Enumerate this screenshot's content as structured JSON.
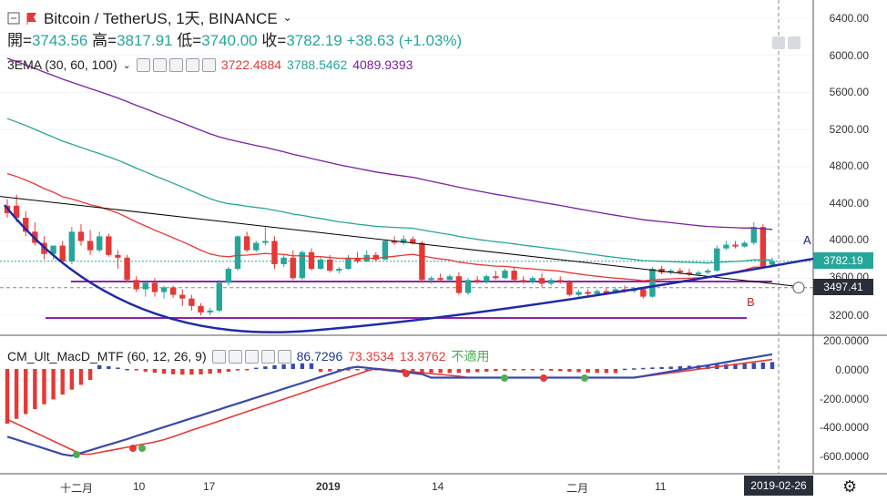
{
  "header": {
    "title": "Bitcoin / TetherUS, 1天, BINANCE",
    "ohlc": [
      {
        "label": "開=",
        "value": "3743.56"
      },
      {
        "label": "高=",
        "value": "3817.91"
      },
      {
        "label": "低=",
        "value": "3740.00"
      },
      {
        "label": "收=",
        "value": "3782.19"
      }
    ],
    "change": "+38.63 (+1.03%)"
  },
  "ema": {
    "label": "3EMA (30, 60, 100)",
    "values": [
      {
        "text": "3722.4884",
        "color": "#e53935"
      },
      {
        "text": "3788.5462",
        "color": "#26a69a"
      },
      {
        "text": "4089.9393",
        "color": "#7b1fa2"
      }
    ]
  },
  "macd": {
    "label": "CM_Ult_MacD_MTF (60, 12, 26, 9)",
    "values": [
      {
        "text": "86.7296",
        "color": "#1e3a8a"
      },
      {
        "text": "73.3534",
        "color": "#e53935"
      },
      {
        "text": "13.3762",
        "color": "#e53935"
      },
      {
        "text": "不適用",
        "color": "#4caf50"
      }
    ]
  },
  "price_axis": [
    "6400.00",
    "6000.00",
    "5600.00",
    "5200.00",
    "4800.00",
    "4400.00",
    "4000.00",
    "3600.00",
    "3200.00"
  ],
  "macd_axis": [
    "200.0000",
    "0.0000",
    "-200.0000",
    "-400.0000",
    "-600.0000"
  ],
  "time_axis": [
    "十二月",
    "10",
    "17",
    "2019",
    "14",
    "二月",
    "11"
  ],
  "price_tags": {
    "last": "3782.19",
    "cursor": "3497.41"
  },
  "date_box": "2019-02-26",
  "annotations": {
    "a": "A",
    "b": "B"
  },
  "colors": {
    "up": "#26a69a",
    "down": "#e53935",
    "ema30": "#e53935",
    "ema60": "#26a69a",
    "ema100": "#7b1fa2",
    "arc": "#1e2aa8",
    "line": "#000000",
    "hline": "#8e24aa"
  },
  "chart_data": {
    "type": "candlestick",
    "candles": [
      [
        4300,
        4450,
        4380,
        4250,
        "d"
      ],
      [
        4380,
        4500,
        4250,
        4200,
        "d"
      ],
      [
        4250,
        4320,
        4100,
        4050,
        "d"
      ],
      [
        4100,
        4200,
        3980,
        3950,
        "d"
      ],
      [
        3980,
        4050,
        3860,
        3800,
        "d"
      ],
      [
        3860,
        3950,
        3950,
        3800,
        "u"
      ],
      [
        3950,
        4000,
        3780,
        3750,
        "d"
      ],
      [
        3780,
        4150,
        4100,
        3750,
        "u"
      ],
      [
        4100,
        4180,
        4000,
        3950,
        "d"
      ],
      [
        4000,
        4120,
        3900,
        3850,
        "d"
      ],
      [
        3900,
        4100,
        4050,
        3880,
        "u"
      ],
      [
        4050,
        4080,
        3850,
        3830,
        "d"
      ],
      [
        3850,
        3900,
        3820,
        3700,
        "d"
      ],
      [
        3820,
        3850,
        3580,
        3550,
        "d"
      ],
      [
        3580,
        3620,
        3480,
        3450,
        "d"
      ],
      [
        3480,
        3560,
        3550,
        3400,
        "u"
      ],
      [
        3550,
        3600,
        3450,
        3400,
        "d"
      ],
      [
        3450,
        3520,
        3500,
        3380,
        "u"
      ],
      [
        3500,
        3520,
        3420,
        3390,
        "d"
      ],
      [
        3420,
        3480,
        3380,
        3300,
        "d"
      ],
      [
        3380,
        3420,
        3300,
        3250,
        "d"
      ],
      [
        3300,
        3330,
        3230,
        3200,
        "d"
      ],
      [
        3230,
        3280,
        3250,
        3200,
        "u"
      ],
      [
        3250,
        3580,
        3550,
        3230,
        "u"
      ],
      [
        3550,
        3720,
        3700,
        3520,
        "u"
      ],
      [
        3700,
        4060,
        4050,
        3680,
        "u"
      ],
      [
        4050,
        4100,
        3900,
        3880,
        "d"
      ],
      [
        3900,
        4000,
        3980,
        3880,
        "u"
      ],
      [
        3980,
        4150,
        4000,
        3950,
        "u"
      ],
      [
        4000,
        4050,
        3750,
        3700,
        "d"
      ],
      [
        3750,
        3850,
        3820,
        3720,
        "u"
      ],
      [
        3820,
        3900,
        3600,
        3580,
        "d"
      ],
      [
        3600,
        3900,
        3880,
        3580,
        "u"
      ],
      [
        3880,
        3920,
        3700,
        3680,
        "d"
      ],
      [
        3700,
        3830,
        3800,
        3690,
        "u"
      ],
      [
        3800,
        3850,
        3680,
        3660,
        "d"
      ],
      [
        3680,
        3720,
        3700,
        3650,
        "u"
      ],
      [
        3700,
        3850,
        3820,
        3690,
        "u"
      ],
      [
        3820,
        3880,
        3780,
        3760,
        "d"
      ],
      [
        3780,
        3900,
        3850,
        3770,
        "u"
      ],
      [
        3850,
        3880,
        3800,
        3780,
        "d"
      ],
      [
        3800,
        4010,
        4000,
        3790,
        "u"
      ],
      [
        4000,
        4050,
        3980,
        3960,
        "d"
      ],
      [
        3980,
        4060,
        4020,
        3960,
        "u"
      ],
      [
        4020,
        4050,
        3980,
        3960,
        "d"
      ],
      [
        3980,
        4000,
        3580,
        3550,
        "d"
      ],
      [
        3580,
        3620,
        3600,
        3540,
        "u"
      ],
      [
        3600,
        3650,
        3580,
        3560,
        "d"
      ],
      [
        3580,
        3640,
        3620,
        3560,
        "u"
      ],
      [
        3620,
        3660,
        3440,
        3420,
        "d"
      ],
      [
        3440,
        3600,
        3580,
        3420,
        "u"
      ],
      [
        3580,
        3620,
        3560,
        3540,
        "d"
      ],
      [
        3560,
        3640,
        3620,
        3540,
        "u"
      ],
      [
        3620,
        3680,
        3600,
        3580,
        "d"
      ],
      [
        3600,
        3700,
        3680,
        3590,
        "u"
      ],
      [
        3680,
        3720,
        3580,
        3560,
        "d"
      ],
      [
        3580,
        3620,
        3560,
        3540,
        "d"
      ],
      [
        3560,
        3620,
        3600,
        3540,
        "u"
      ],
      [
        3600,
        3650,
        3540,
        3500,
        "d"
      ],
      [
        3540,
        3600,
        3580,
        3520,
        "u"
      ],
      [
        3580,
        3620,
        3560,
        3540,
        "d"
      ],
      [
        3560,
        3580,
        3420,
        3400,
        "d"
      ],
      [
        3420,
        3470,
        3450,
        3400,
        "u"
      ],
      [
        3450,
        3480,
        3430,
        3410,
        "d"
      ],
      [
        3430,
        3480,
        3460,
        3410,
        "u"
      ],
      [
        3460,
        3500,
        3440,
        3420,
        "d"
      ],
      [
        3440,
        3500,
        3480,
        3430,
        "u"
      ],
      [
        3480,
        3520,
        3460,
        3440,
        "d"
      ],
      [
        3460,
        3500,
        3480,
        3440,
        "u"
      ],
      [
        3480,
        3500,
        3400,
        3380,
        "d"
      ],
      [
        3400,
        3720,
        3700,
        3390,
        "u"
      ],
      [
        3700,
        3730,
        3660,
        3640,
        "d"
      ],
      [
        3660,
        3700,
        3680,
        3640,
        "u"
      ],
      [
        3680,
        3710,
        3660,
        3640,
        "d"
      ],
      [
        3660,
        3700,
        3640,
        3620,
        "d"
      ],
      [
        3640,
        3680,
        3660,
        3620,
        "u"
      ],
      [
        3660,
        3700,
        3680,
        3640,
        "u"
      ],
      [
        3680,
        3950,
        3920,
        3670,
        "u"
      ],
      [
        3920,
        4000,
        3960,
        3900,
        "u"
      ],
      [
        3960,
        4000,
        3940,
        3920,
        "d"
      ],
      [
        3940,
        4000,
        3980,
        3930,
        "u"
      ],
      [
        3980,
        4200,
        4150,
        3960,
        "u"
      ],
      [
        4150,
        4180,
        3720,
        3700,
        "d"
      ],
      [
        3744,
        3818,
        3782,
        3740,
        "u"
      ]
    ]
  }
}
